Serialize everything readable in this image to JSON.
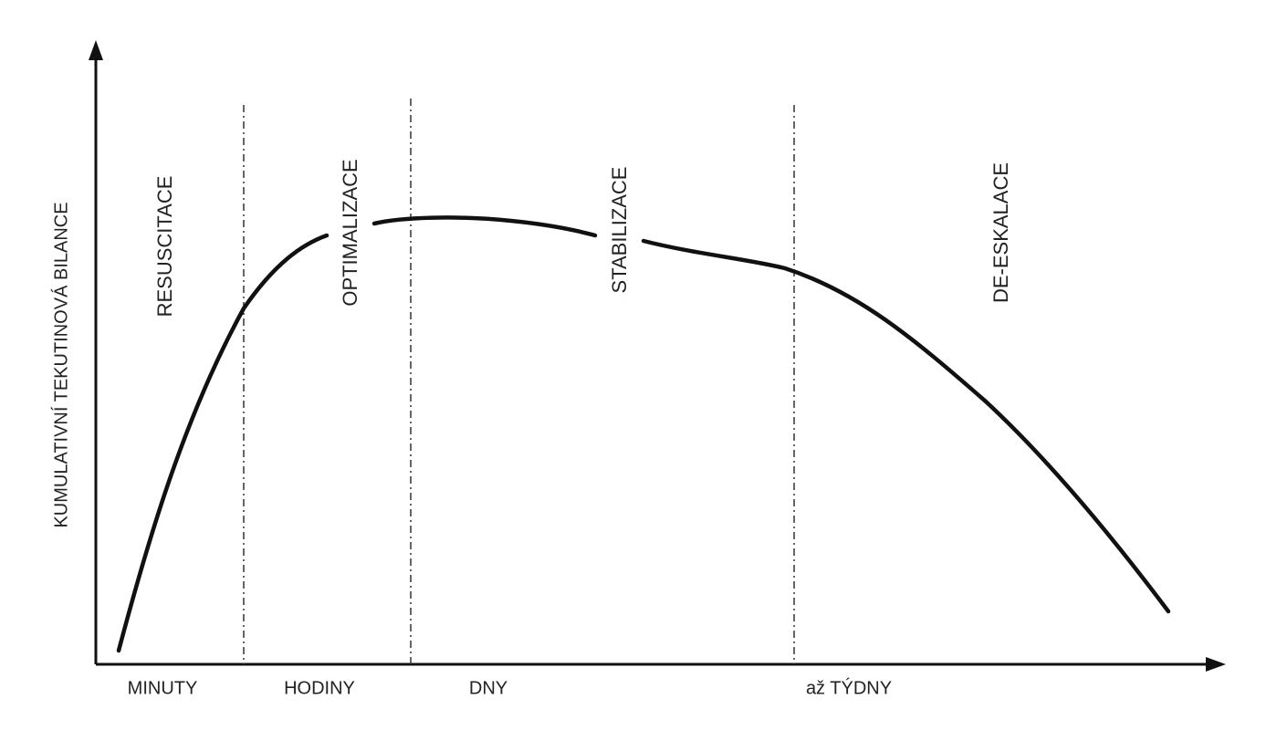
{
  "axis": {
    "y_label": "KUMULATIVNÍ TEKUTINOVÁ BILANCE"
  },
  "phases": [
    "RESUSCITACE",
    "OPTIMALIZACE",
    "STABILIZACE",
    "DE-ESKALACE"
  ],
  "time_labels": [
    "MINUTY",
    "HODINY",
    "DNY",
    "až TÝDNY"
  ]
}
